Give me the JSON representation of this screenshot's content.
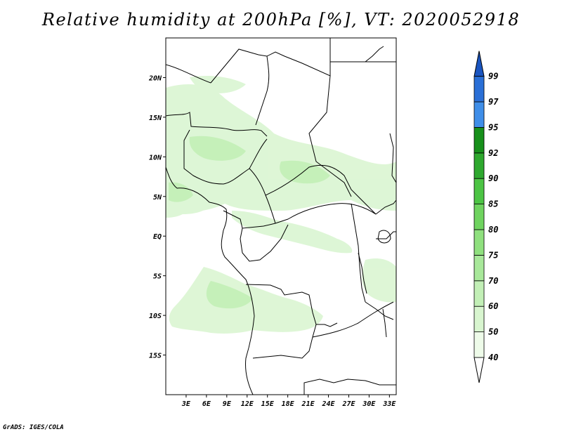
{
  "title": "Relative humidity at 200hPa [%], VT: 2020052918",
  "footer": "GrADS: IGES/COLA",
  "map": {
    "lon_range": [
      0,
      34
    ],
    "lat_range": [
      -20,
      25
    ],
    "lon_ticks": [
      "3E",
      "6E",
      "9E",
      "12E",
      "15E",
      "18E",
      "21E",
      "24E",
      "27E",
      "30E",
      "33E"
    ],
    "lat_ticks": [
      "20N",
      "15N",
      "10N",
      "5N",
      "EQ",
      "5S",
      "10S",
      "15S"
    ]
  },
  "colorbar": {
    "labels": [
      "40",
      "50",
      "60",
      "70",
      "75",
      "80",
      "85",
      "90",
      "92",
      "95",
      "97",
      "99"
    ],
    "colors": [
      "#eefbe9",
      "#d8f5cf",
      "#c2efb6",
      "#a8e89a",
      "#8fe07e",
      "#6fd35f",
      "#4cc444",
      "#2ea82e",
      "#17901b",
      "#3f8ee8",
      "#2a6fd6",
      "#1a55c0"
    ]
  }
}
